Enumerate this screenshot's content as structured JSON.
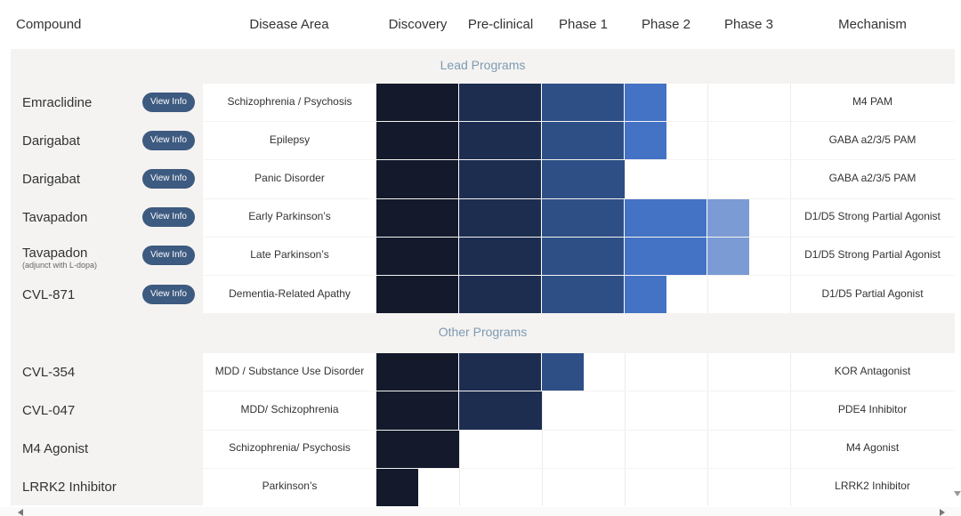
{
  "table": {
    "columns": [
      "Compound",
      "Disease Area",
      "Discovery",
      "Pre-clinical",
      "Phase 1",
      "Phase 2",
      "Phase 3",
      "Mechanism"
    ],
    "stage_colors": [
      "#141a2b",
      "#1c2d50",
      "#2e4f86",
      "#4472c4",
      "#7b9bd4"
    ],
    "sections": [
      {
        "title": "Lead Programs",
        "rows": [
          {
            "compound": "Emraclidine",
            "button": "View Info",
            "disease": "Schizophrenia / Psychosis",
            "progress": 3.5,
            "mechanism": "M4 PAM"
          },
          {
            "compound": "Darigabat",
            "button": "View Info",
            "disease": "Epilepsy",
            "progress": 3.5,
            "mechanism": "GABA a2/3/5 PAM"
          },
          {
            "compound": "Darigabat",
            "button": "View Info",
            "disease": "Panic Disorder",
            "progress": 3,
            "mechanism": "GABA a2/3/5 PAM"
          },
          {
            "compound": "Tavapadon",
            "button": "View Info",
            "disease": "Early Parkinson’s",
            "progress": 4.5,
            "mechanism": "D1/D5 Strong Partial Agonist"
          },
          {
            "compound": "Tavapadon",
            "note": "(adjunct with L-dopa)",
            "button": "View Info",
            "disease": "Late Parkinson’s",
            "progress": 4.5,
            "mechanism": "D1/D5 Strong Partial Agonist"
          },
          {
            "compound": "CVL-871",
            "button": "View Info",
            "disease": "Dementia-Related Apathy",
            "progress": 3.5,
            "mechanism": "D1/D5 Partial Agonist"
          }
        ]
      },
      {
        "title": "Other Programs",
        "rows": [
          {
            "compound": "CVL-354",
            "disease": "MDD / Substance Use Disorder",
            "progress": 2.5,
            "mechanism": "KOR Antagonist"
          },
          {
            "compound": "CVL-047",
            "disease": "MDD/ Schizophrenia",
            "progress": 2,
            "mechanism": "PDE4 Inhibitor"
          },
          {
            "compound": "M4 Agonist",
            "disease": "Schizophrenia/ Psychosis",
            "progress": 1,
            "mechanism": "M4 Agonist"
          },
          {
            "compound": "LRRK2 Inhibitor",
            "disease": "Parkinson’s",
            "progress": 0.5,
            "mechanism": "LRRK2 Inhibitor"
          }
        ]
      }
    ]
  }
}
